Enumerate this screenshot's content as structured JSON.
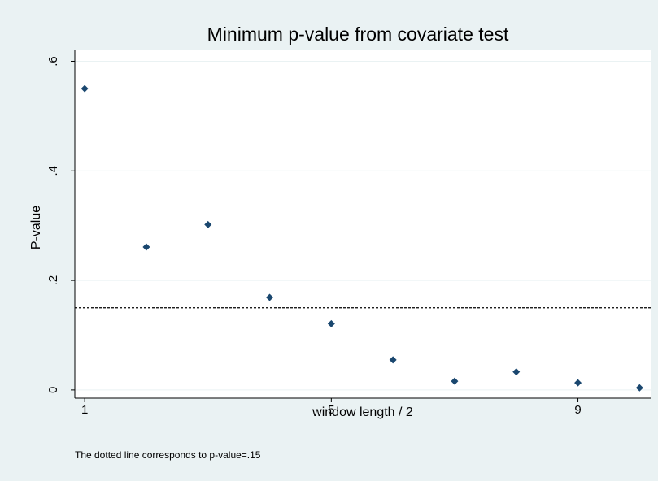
{
  "chart_data": {
    "type": "scatter",
    "title": "Minimum p-value from covariate test",
    "xlabel": "window length / 2",
    "ylabel": "P-value",
    "note": "The dotted line corresponds to p-value=.15",
    "x": [
      1,
      2,
      3,
      4,
      5,
      6,
      7,
      8,
      9,
      10
    ],
    "values": [
      0.55,
      0.261,
      0.302,
      0.169,
      0.121,
      0.055,
      0.016,
      0.033,
      0.013,
      0.004
    ],
    "color": "#1a476f",
    "reference_line": 0.15,
    "xlim": [
      0.84,
      10.18
    ],
    "xticks": [
      1,
      5,
      9
    ],
    "ylim": [
      -0.015,
      0.62
    ],
    "yticks": [
      0,
      {
        "value": 0.2,
        "label": ".2"
      },
      {
        "value": 0.4,
        "label": ".4"
      },
      {
        "value": 0.6,
        "label": ".6"
      }
    ],
    "grid": true
  }
}
